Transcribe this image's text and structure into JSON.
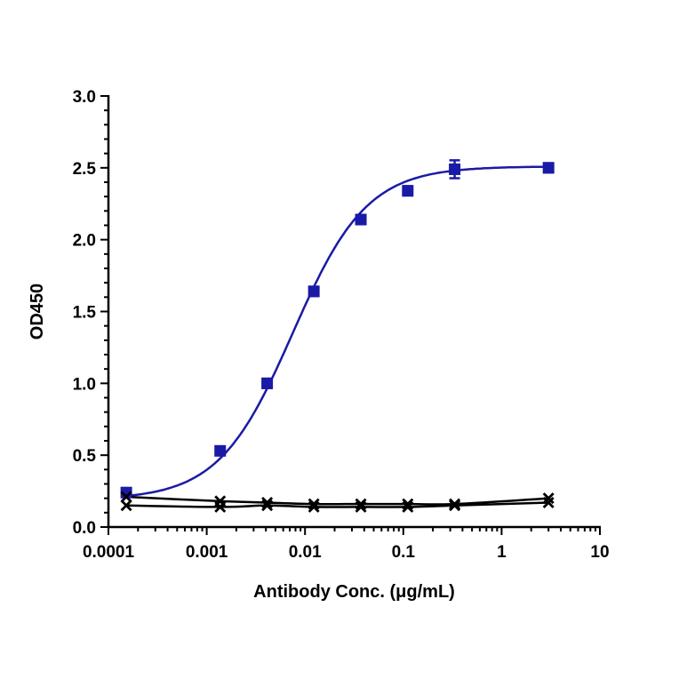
{
  "chart_data": {
    "type": "scatter",
    "title": "",
    "xlabel": "Antibody Conc. (μg/mL)",
    "ylabel": "OD450",
    "x_scale": "log",
    "xlim": [
      0.0001,
      10
    ],
    "ylim": [
      0,
      3.0
    ],
    "x_ticks": [
      "0.0001",
      "0.001",
      "0.01",
      "0.1",
      "1",
      "10"
    ],
    "y_ticks": [
      "0.0",
      "0.5",
      "1.0",
      "1.5",
      "2.0",
      "2.5",
      "3.0"
    ],
    "grid": false,
    "legend": "none",
    "series": [
      {
        "marker": "square",
        "color": "#1a1aa6",
        "x": [
          0.000152,
          0.00137,
          0.00412,
          0.0123,
          0.037,
          0.111,
          0.333,
          3.0
        ],
        "y": [
          0.24,
          0.53,
          1.0,
          1.64,
          2.14,
          2.34,
          2.49,
          2.5
        ],
        "error": [
          0.01,
          0.01,
          0.02,
          0.02,
          0.02,
          0.02,
          0.05,
          0.02
        ],
        "fit": "4PL",
        "fit_params": {
          "bottom": 0.19,
          "top": 2.51,
          "ec50": 0.0075,
          "hill": 1.15
        }
      },
      {
        "marker": "x",
        "color": "#000000",
        "x": [
          0.000152,
          0.00137,
          0.00412,
          0.0123,
          0.037,
          0.111,
          0.333,
          3.0
        ],
        "y": [
          0.21,
          0.18,
          0.17,
          0.16,
          0.16,
          0.16,
          0.16,
          0.2
        ]
      },
      {
        "marker": "x",
        "color": "#000000",
        "x": [
          0.000152,
          0.00137,
          0.00412,
          0.0123,
          0.037,
          0.111,
          0.333,
          3.0
        ],
        "y": [
          0.15,
          0.14,
          0.15,
          0.14,
          0.14,
          0.14,
          0.15,
          0.17
        ]
      }
    ]
  }
}
